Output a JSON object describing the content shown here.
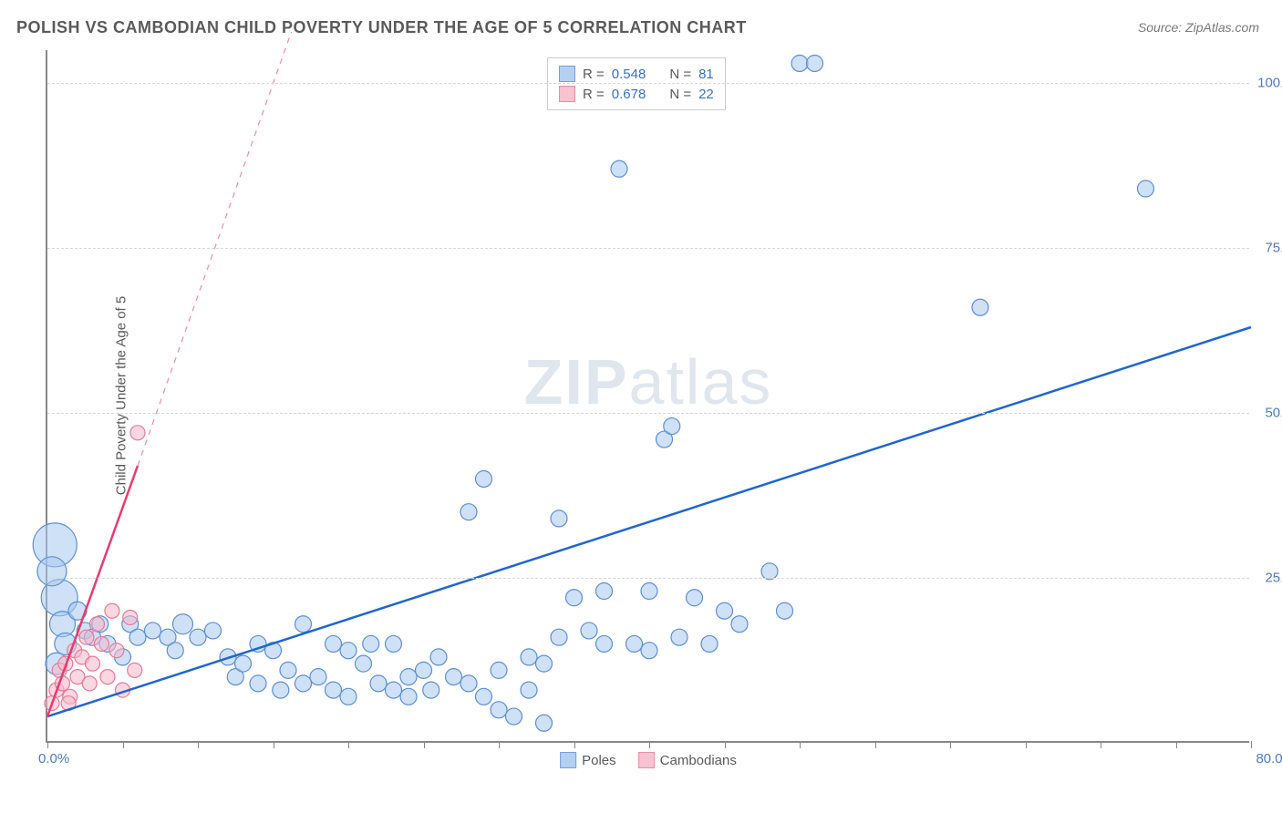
{
  "title": "POLISH VS CAMBODIAN CHILD POVERTY UNDER THE AGE OF 5 CORRELATION CHART",
  "source_label": "Source:",
  "source_name": "ZipAtlas.com",
  "y_axis_title": "Child Poverty Under the Age of 5",
  "watermark_bold": "ZIP",
  "watermark_rest": "atlas",
  "chart": {
    "type": "scatter",
    "xlim": [
      0,
      80
    ],
    "ylim": [
      0,
      105
    ],
    "x_ticks": [
      0,
      5,
      10,
      15,
      20,
      25,
      30,
      35,
      40,
      45,
      50,
      55,
      60,
      65,
      70,
      75,
      80
    ],
    "y_gridlines": [
      25,
      50,
      75,
      100
    ],
    "y_tick_labels": [
      "25.0%",
      "50.0%",
      "75.0%",
      "100.0%"
    ],
    "x_label_min": "0.0%",
    "x_label_max": "80.0%",
    "background_color": "#ffffff",
    "grid_color": "#d8d8d8",
    "axis_color": "#888888",
    "tick_label_color": "#4a7bc8",
    "series": {
      "poles": {
        "label": "Poles",
        "fill": "#a8c8ef",
        "stroke": "#5b8fd6",
        "fill_opacity": 0.55,
        "marker_radius": 9,
        "trend_color": "#1f66d0",
        "trend_width": 2.5,
        "trend_start": {
          "x": 0,
          "y": 4
        },
        "trend_end": {
          "x": 80,
          "y": 63
        },
        "r_value": "0.548",
        "n_value": "81",
        "points": [
          {
            "x": 0.5,
            "y": 30,
            "r": 24
          },
          {
            "x": 0.8,
            "y": 22,
            "r": 20
          },
          {
            "x": 0.3,
            "y": 26,
            "r": 16
          },
          {
            "x": 1,
            "y": 18,
            "r": 14
          },
          {
            "x": 1.2,
            "y": 15,
            "r": 12
          },
          {
            "x": 0.6,
            "y": 12,
            "r": 12
          },
          {
            "x": 2,
            "y": 20,
            "r": 10
          },
          {
            "x": 2.5,
            "y": 17,
            "r": 9
          },
          {
            "x": 3,
            "y": 16,
            "r": 9
          },
          {
            "x": 3.5,
            "y": 18,
            "r": 9
          },
          {
            "x": 4,
            "y": 15,
            "r": 9
          },
          {
            "x": 5,
            "y": 13,
            "r": 9
          },
          {
            "x": 5.5,
            "y": 18,
            "r": 9
          },
          {
            "x": 6,
            "y": 16,
            "r": 9
          },
          {
            "x": 7,
            "y": 17,
            "r": 9
          },
          {
            "x": 8,
            "y": 16,
            "r": 9
          },
          {
            "x": 8.5,
            "y": 14,
            "r": 9
          },
          {
            "x": 9,
            "y": 18,
            "r": 11
          },
          {
            "x": 10,
            "y": 16,
            "r": 9
          },
          {
            "x": 11,
            "y": 17,
            "r": 9
          },
          {
            "x": 12,
            "y": 13,
            "r": 9
          },
          {
            "x": 12.5,
            "y": 10,
            "r": 9
          },
          {
            "x": 13,
            "y": 12,
            "r": 9
          },
          {
            "x": 14,
            "y": 15,
            "r": 9
          },
          {
            "x": 14,
            "y": 9,
            "r": 9
          },
          {
            "x": 15,
            "y": 14,
            "r": 9
          },
          {
            "x": 15.5,
            "y": 8,
            "r": 9
          },
          {
            "x": 16,
            "y": 11,
            "r": 9
          },
          {
            "x": 17,
            "y": 9,
            "r": 9
          },
          {
            "x": 17,
            "y": 18,
            "r": 9
          },
          {
            "x": 18,
            "y": 10,
            "r": 9
          },
          {
            "x": 19,
            "y": 8,
            "r": 9
          },
          {
            "x": 19,
            "y": 15,
            "r": 9
          },
          {
            "x": 20,
            "y": 14,
            "r": 9
          },
          {
            "x": 20,
            "y": 7,
            "r": 9
          },
          {
            "x": 21,
            "y": 12,
            "r": 9
          },
          {
            "x": 21.5,
            "y": 15,
            "r": 9
          },
          {
            "x": 22,
            "y": 9,
            "r": 9
          },
          {
            "x": 23,
            "y": 8,
            "r": 9
          },
          {
            "x": 23,
            "y": 15,
            "r": 9
          },
          {
            "x": 24,
            "y": 7,
            "r": 9
          },
          {
            "x": 24,
            "y": 10,
            "r": 9
          },
          {
            "x": 25,
            "y": 11,
            "r": 9
          },
          {
            "x": 25.5,
            "y": 8,
            "r": 9
          },
          {
            "x": 26,
            "y": 13,
            "r": 9
          },
          {
            "x": 27,
            "y": 10,
            "r": 9
          },
          {
            "x": 28,
            "y": 35,
            "r": 9
          },
          {
            "x": 28,
            "y": 9,
            "r": 9
          },
          {
            "x": 29,
            "y": 7,
            "r": 9
          },
          {
            "x": 29,
            "y": 40,
            "r": 9
          },
          {
            "x": 30,
            "y": 11,
            "r": 9
          },
          {
            "x": 30,
            "y": 5,
            "r": 9
          },
          {
            "x": 31,
            "y": 4,
            "r": 9
          },
          {
            "x": 32,
            "y": 13,
            "r": 9
          },
          {
            "x": 32,
            "y": 8,
            "r": 9
          },
          {
            "x": 33,
            "y": 12,
            "r": 9
          },
          {
            "x": 33,
            "y": 3,
            "r": 9
          },
          {
            "x": 34,
            "y": 34,
            "r": 9
          },
          {
            "x": 34,
            "y": 16,
            "r": 9
          },
          {
            "x": 35,
            "y": 22,
            "r": 9
          },
          {
            "x": 36,
            "y": 17,
            "r": 9
          },
          {
            "x": 37,
            "y": 15,
            "r": 9
          },
          {
            "x": 37,
            "y": 23,
            "r": 9
          },
          {
            "x": 38,
            "y": 87,
            "r": 9
          },
          {
            "x": 39,
            "y": 15,
            "r": 9
          },
          {
            "x": 40,
            "y": 23,
            "r": 9
          },
          {
            "x": 40,
            "y": 14,
            "r": 9
          },
          {
            "x": 41,
            "y": 46,
            "r": 9
          },
          {
            "x": 41.5,
            "y": 48,
            "r": 9
          },
          {
            "x": 42,
            "y": 16,
            "r": 9
          },
          {
            "x": 43,
            "y": 22,
            "r": 9
          },
          {
            "x": 44,
            "y": 15,
            "r": 9
          },
          {
            "x": 45,
            "y": 20,
            "r": 9
          },
          {
            "x": 46,
            "y": 18,
            "r": 9
          },
          {
            "x": 48,
            "y": 26,
            "r": 9
          },
          {
            "x": 49,
            "y": 20,
            "r": 9
          },
          {
            "x": 50,
            "y": 103,
            "r": 9
          },
          {
            "x": 51,
            "y": 103,
            "r": 9
          },
          {
            "x": 62,
            "y": 66,
            "r": 9
          },
          {
            "x": 73,
            "y": 84,
            "r": 9
          }
        ]
      },
      "cambodians": {
        "label": "Cambodians",
        "fill": "#f7b8c8",
        "stroke": "#e77a98",
        "fill_opacity": 0.55,
        "marker_radius": 8,
        "trend_color": "#e93b6e",
        "trend_width": 2.5,
        "trend_solid_start": {
          "x": 0,
          "y": 4
        },
        "trend_solid_end": {
          "x": 6,
          "y": 42
        },
        "trend_dash_end": {
          "x": 22,
          "y": 145
        },
        "r_value": "0.678",
        "n_value": "22",
        "points": [
          {
            "x": 0.3,
            "y": 6,
            "r": 8
          },
          {
            "x": 0.6,
            "y": 8,
            "r": 8
          },
          {
            "x": 0.8,
            "y": 11,
            "r": 8
          },
          {
            "x": 1,
            "y": 9,
            "r": 8
          },
          {
            "x": 1.2,
            "y": 12,
            "r": 8
          },
          {
            "x": 1.5,
            "y": 7,
            "r": 8
          },
          {
            "x": 1.8,
            "y": 14,
            "r": 8
          },
          {
            "x": 2,
            "y": 10,
            "r": 8
          },
          {
            "x": 2.3,
            "y": 13,
            "r": 8
          },
          {
            "x": 2.6,
            "y": 16,
            "r": 8
          },
          {
            "x": 1.4,
            "y": 6,
            "r": 8
          },
          {
            "x": 3,
            "y": 12,
            "r": 8
          },
          {
            "x": 3.3,
            "y": 18,
            "r": 8
          },
          {
            "x": 3.6,
            "y": 15,
            "r": 8
          },
          {
            "x": 4,
            "y": 10,
            "r": 8
          },
          {
            "x": 4.3,
            "y": 20,
            "r": 8
          },
          {
            "x": 4.6,
            "y": 14,
            "r": 8
          },
          {
            "x": 5,
            "y": 8,
            "r": 8
          },
          {
            "x": 5.5,
            "y": 19,
            "r": 8
          },
          {
            "x": 5.8,
            "y": 11,
            "r": 8
          },
          {
            "x": 2.8,
            "y": 9,
            "r": 8
          },
          {
            "x": 6,
            "y": 47,
            "r": 8
          }
        ]
      }
    }
  },
  "stats_legend": {
    "r_label": "R =",
    "n_label": "N ="
  },
  "bottom_legend": {
    "poles": "Poles",
    "cambodians": "Cambodians"
  }
}
